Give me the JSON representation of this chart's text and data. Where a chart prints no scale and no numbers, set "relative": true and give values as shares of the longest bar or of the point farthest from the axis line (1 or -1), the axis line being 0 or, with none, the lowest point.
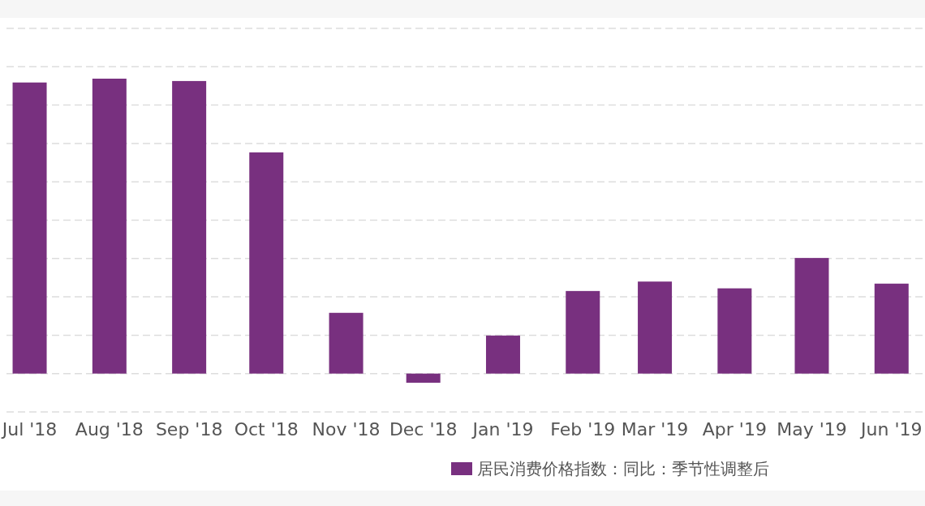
{
  "chart_data": {
    "type": "bar",
    "relative": true,
    "x": [
      "2018-07",
      "2018-08",
      "2018-09",
      "2018-10",
      "2018-11",
      "2018-12",
      "2019-01",
      "2019-02",
      "2019-03",
      "2019-04",
      "2019-05",
      "2019-06"
    ],
    "xlim": [
      "2018-06-22",
      "2019-06-14"
    ],
    "xticks": [
      {
        "value": "2018-07",
        "label": "Jul '18"
      },
      {
        "value": "2018-08",
        "label": "Aug '18"
      },
      {
        "value": "2018-09",
        "label": "Sep '18"
      },
      {
        "value": "2018-10",
        "label": "Oct '18"
      },
      {
        "value": "2018-11",
        "label": "Nov '18"
      },
      {
        "value": "2018-12",
        "label": "Dec '18"
      },
      {
        "value": "2019-01",
        "label": "Jan '19"
      },
      {
        "value": "2019-02",
        "label": "Feb '19"
      },
      {
        "value": "2019-03",
        "label": "Mar '19"
      },
      {
        "value": "2019-04",
        "label": "Apr '19"
      },
      {
        "value": "2019-05",
        "label": "May '19"
      },
      {
        "value": "2019-06",
        "label": "Jun '19"
      }
    ],
    "series": [
      {
        "name": "居民消费价格指数：同比：季节性调整后",
        "color": "#78307f",
        "values": [
          0.987,
          1,
          0.992,
          0.75,
          0.206,
          -0.031,
          0.129,
          0.28,
          0.312,
          0.289,
          0.392,
          0.305
        ]
      }
    ],
    "grid": "y",
    "legend": "bottom"
  }
}
